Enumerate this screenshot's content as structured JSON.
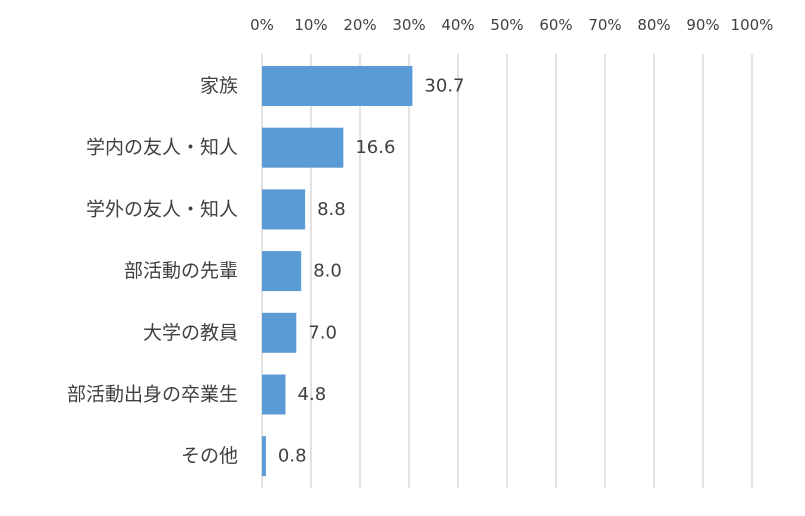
{
  "chart_data": {
    "type": "bar",
    "orientation": "horizontal",
    "categories": [
      "家族",
      "学内の友人・知人",
      "学外の友人・知人",
      "部活動の先輩",
      "大学の教員",
      "部活動出身の卒業生",
      "その他"
    ],
    "values": [
      30.7,
      16.6,
      8.8,
      8.0,
      7.0,
      4.8,
      0.8
    ],
    "data_labels": [
      "30.7",
      "16.6",
      "8.8",
      "8.0",
      "7.0",
      "4.8",
      "0.8"
    ],
    "xlim": [
      0,
      100
    ],
    "x_ticks": [
      "0%",
      "10%",
      "20%",
      "30%",
      "40%",
      "50%",
      "60%",
      "70%",
      "80%",
      "90%",
      "100%"
    ],
    "x_axis_position": "top",
    "grid": true,
    "bar_color": "#5b9bd5",
    "title": "",
    "xlabel": "",
    "ylabel": ""
  }
}
